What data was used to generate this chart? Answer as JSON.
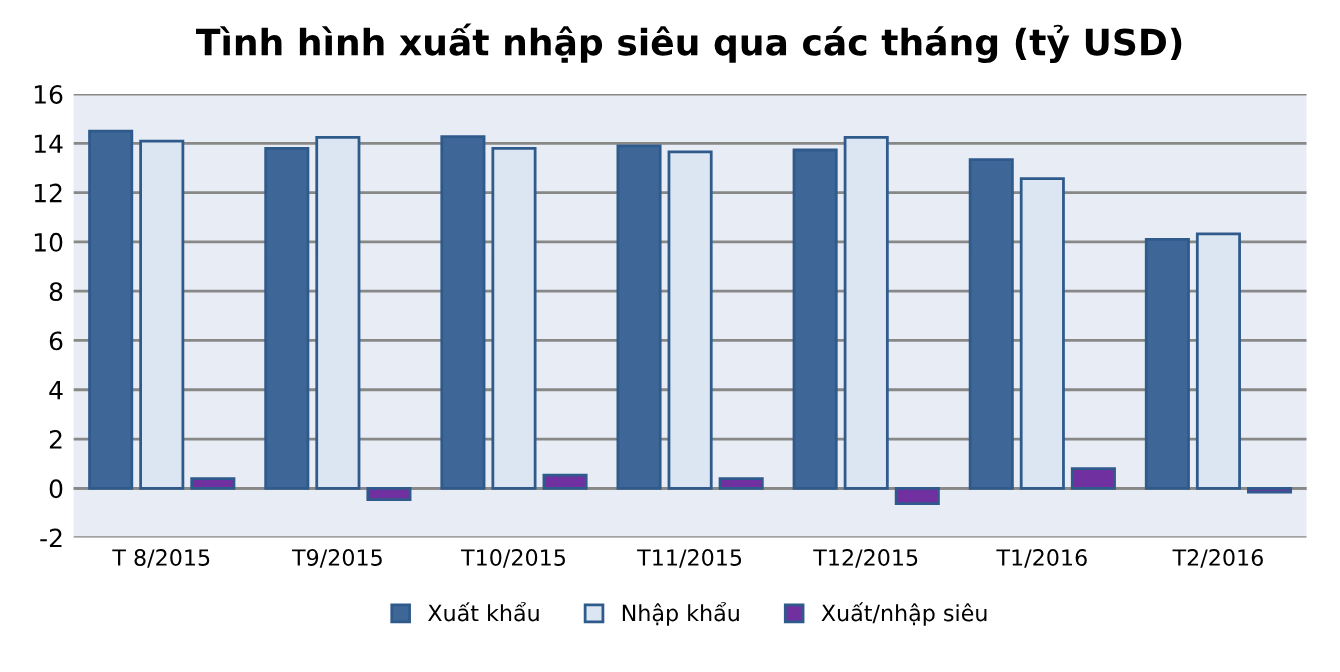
{
  "chart_data": {
    "type": "bar",
    "title": "Tình hình xuất nhập siêu qua các tháng (tỷ USD)",
    "categories": [
      "T 8/2015",
      "T9/2015",
      "T10/2015",
      "T11/2015",
      "T12/2015",
      "T1/2016",
      "T2/2016"
    ],
    "series": [
      {
        "name": "Xuất khẩu",
        "color": "#3e6797",
        "values": [
          14.5,
          13.8,
          14.27,
          13.9,
          13.73,
          13.34,
          10.1
        ]
      },
      {
        "name": "Nhập khẩu",
        "color": "#dce6f2",
        "values": [
          14.09,
          14.24,
          13.8,
          13.65,
          14.24,
          12.57,
          10.33
        ]
      },
      {
        "name": "Xuất/nhập siêu",
        "color": "#7030a0",
        "values": [
          0.39,
          -0.46,
          0.54,
          0.39,
          -0.62,
          0.8,
          -0.15
        ]
      }
    ],
    "ylim": [
      -2,
      16
    ],
    "yticks": [
      -2,
      0,
      2,
      4,
      6,
      8,
      10,
      12,
      14,
      16
    ],
    "grid": "y",
    "legend": "bottom"
  }
}
